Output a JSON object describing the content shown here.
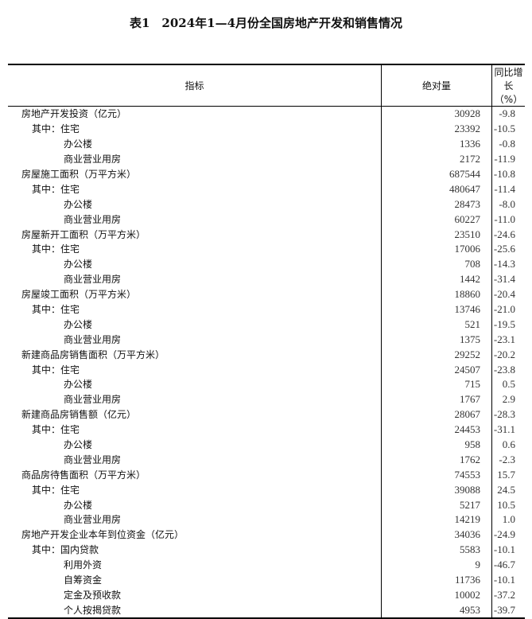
{
  "title": "表1　2024年1—4月份全国房地产开发和销售情况",
  "headers": [
    "指标",
    "绝对量",
    "同比增长（%）"
  ],
  "rows": [
    [
      "房地产开发投资（亿元）",
      "30928",
      "-9.8",
      0
    ],
    [
      "其中：住宅",
      "23392",
      "-10.5",
      1
    ],
    [
      "办公楼",
      "1336",
      "-0.8",
      2
    ],
    [
      "商业营业用房",
      "2172",
      "-11.9",
      2
    ],
    [
      "房屋施工面积（万平方米）",
      "687544",
      "-10.8",
      0
    ],
    [
      "其中：住宅",
      "480647",
      "-11.4",
      1
    ],
    [
      "办公楼",
      "28473",
      "-8.0",
      2
    ],
    [
      "商业营业用房",
      "60227",
      "-11.0",
      2
    ],
    [
      "房屋新开工面积（万平方米）",
      "23510",
      "-24.6",
      0
    ],
    [
      "其中：住宅",
      "17006",
      "-25.6",
      1
    ],
    [
      "办公楼",
      "708",
      "-14.3",
      2
    ],
    [
      "商业营业用房",
      "1442",
      "-31.4",
      2
    ],
    [
      "房屋竣工面积（万平方米）",
      "18860",
      "-20.4",
      0
    ],
    [
      "其中：住宅",
      "13746",
      "-21.0",
      1
    ],
    [
      "办公楼",
      "521",
      "-19.5",
      2
    ],
    [
      "商业营业用房",
      "1375",
      "-23.1",
      2
    ],
    [
      "新建商品房销售面积（万平方米）",
      "29252",
      "-20.2",
      0
    ],
    [
      "其中：住宅",
      "24507",
      "-23.8",
      1
    ],
    [
      "办公楼",
      "715",
      "0.5",
      2
    ],
    [
      "商业营业用房",
      "1767",
      "2.9",
      2
    ],
    [
      "新建商品房销售额（亿元）",
      "28067",
      "-28.3",
      0
    ],
    [
      "其中：住宅",
      "24453",
      "-31.1",
      1
    ],
    [
      "办公楼",
      "958",
      "0.6",
      2
    ],
    [
      "商业营业用房",
      "1762",
      "-2.3",
      2
    ],
    [
      "商品房待售面积（万平方米）",
      "74553",
      "15.7",
      0
    ],
    [
      "其中：住宅",
      "39088",
      "24.5",
      1
    ],
    [
      "办公楼",
      "5217",
      "10.5",
      2
    ],
    [
      "商业营业用房",
      "14219",
      "1.0",
      2
    ],
    [
      "房地产开发企业本年到位资金（亿元）",
      "34036",
      "-24.9",
      0
    ],
    [
      "其中：国内贷款",
      "5583",
      "-10.1",
      1
    ],
    [
      "利用外资",
      "9",
      "-46.7",
      2
    ],
    [
      "自筹资金",
      "11736",
      "-10.1",
      2
    ],
    [
      "定金及预收款",
      "10002",
      "-37.2",
      2
    ],
    [
      "个人按揭贷款",
      "4953",
      "-39.7",
      2
    ]
  ]
}
